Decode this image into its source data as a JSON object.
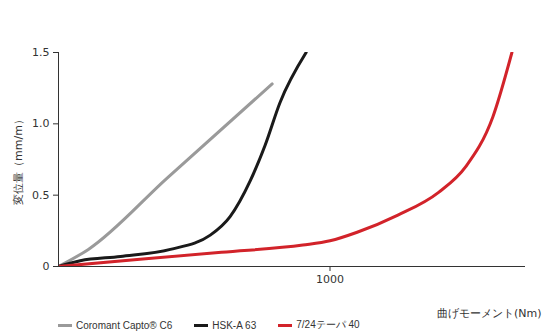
{
  "chart_data": {
    "type": "line",
    "xlabel": "曲げモーメント(Nm)",
    "ylabel": "変位量（mm/m）",
    "xlim": [
      0,
      1720
    ],
    "xticks": [
      1000
    ],
    "ylim": [
      0,
      1.5
    ],
    "yticks": [
      0,
      0.5,
      {
        "value": 1,
        "label": "1.0"
      },
      1.5
    ],
    "grid": false,
    "legend": "bottom",
    "series": [
      {
        "name": "Coromant Capto® C6",
        "color": "#9a9a9a",
        "x": [
          0,
          110,
          400,
          787
        ],
        "values": [
          0,
          0.12,
          0.62,
          1.28
        ]
      },
      {
        "name": "HSK-A 63",
        "color": "#1a1a1a",
        "x": [
          0,
          80,
          228,
          412,
          559,
          632,
          706,
          761,
          816,
          912
        ],
        "values": [
          0,
          0.04,
          0.07,
          0.12,
          0.22,
          0.35,
          0.6,
          0.85,
          1.15,
          1.5
        ]
      },
      {
        "name": "7/24テーパ 40",
        "color": "#d2232a",
        "x": [
          0,
          300,
          600,
          900,
          1000,
          1100,
          1250,
          1400,
          1500,
          1600,
          1670
        ],
        "values": [
          0,
          0.05,
          0.1,
          0.15,
          0.18,
          0.24,
          0.36,
          0.52,
          0.7,
          1.05,
          1.5
        ]
      }
    ]
  }
}
